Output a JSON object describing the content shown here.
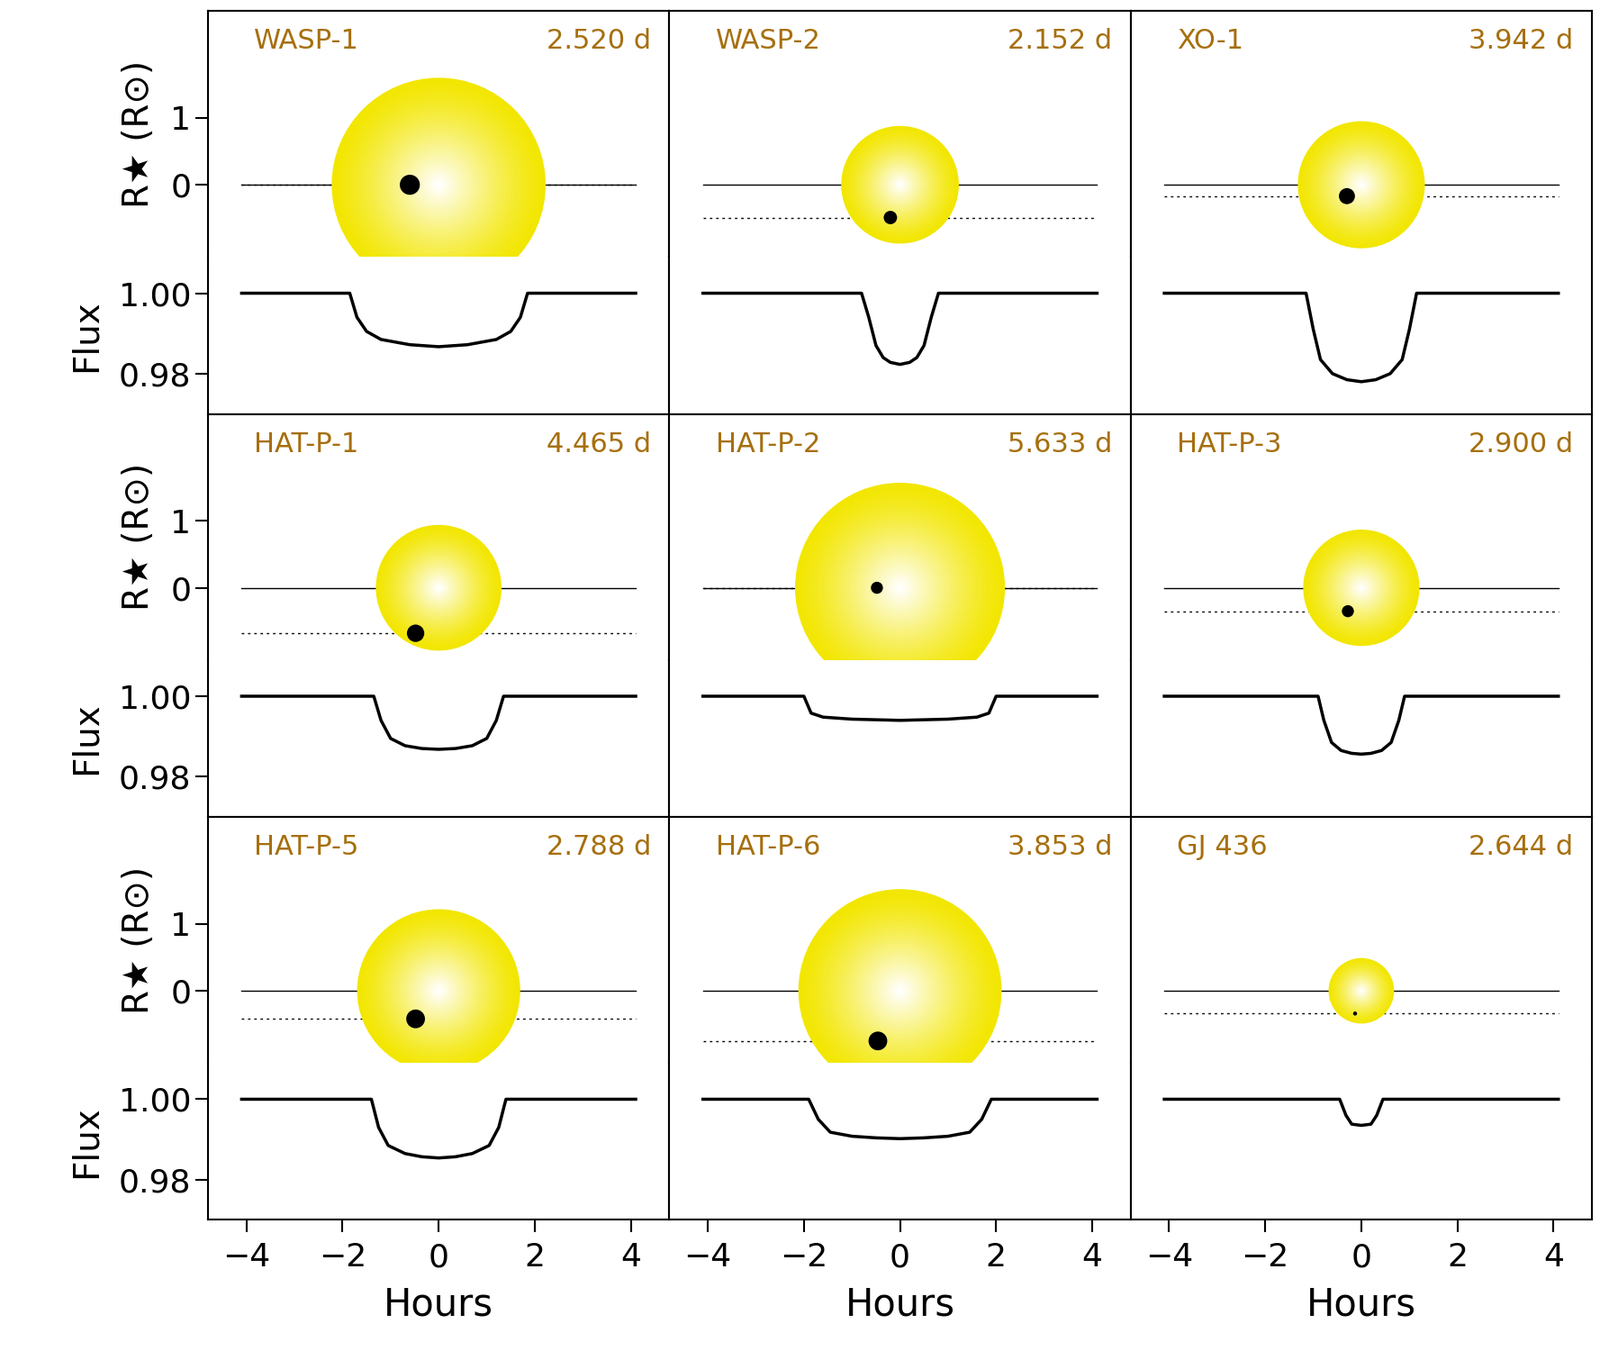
{
  "chart_data": [
    {
      "type": "line",
      "title": "WASP-1",
      "annotation": "2.520 d",
      "tick_labels": "y",
      "star_ylabel": "R★ (R⊙)",
      "ylabel": "Flux",
      "color": "#f2e600",
      "star_center": [
        0,
        0
      ],
      "star_radius": 1.6,
      "planet_x": -0.6,
      "planet_y": 0.0,
      "planet_radius": 0.15,
      "x": [
        -4.1,
        -1.85,
        -1.7,
        -1.5,
        -1.2,
        -0.6,
        0,
        0.6,
        1.2,
        1.5,
        1.7,
        1.85,
        4.1
      ],
      "values": [
        1.0,
        1.0,
        0.994,
        0.9905,
        0.9885,
        0.9872,
        0.9867,
        0.9872,
        0.9885,
        0.9905,
        0.994,
        1.0,
        1.0
      ],
      "xlim": [
        -4.8,
        4.8
      ],
      "xticks": [
        {
          "value": -4,
          "label": "−4"
        },
        {
          "value": -2,
          "label": "−2"
        },
        0,
        2,
        4
      ],
      "ylim": [
        0.97,
        1.009
      ],
      "yticks": [
        {
          "value": 0.98,
          "label": "0.98"
        },
        {
          "value": 1.0,
          "label": "1.00"
        }
      ],
      "star_ylim": [
        -1.08,
        2.6
      ],
      "star_yticks": [
        0,
        1
      ]
    },
    {
      "type": "line",
      "title": "WASP-2",
      "annotation": "2.152 d",
      "tick_labels": false,
      "color": "#f2e600",
      "star_center": [
        0,
        0
      ],
      "star_radius": 0.88,
      "planet_x": -0.2,
      "planet_y": -0.49,
      "planet_radius": 0.1,
      "x": [
        -4.1,
        -0.8,
        -0.65,
        -0.5,
        -0.35,
        -0.2,
        0,
        0.2,
        0.35,
        0.5,
        0.65,
        0.8,
        4.1
      ],
      "values": [
        1.0,
        1.0,
        0.994,
        0.987,
        0.984,
        0.9828,
        0.9823,
        0.9828,
        0.984,
        0.987,
        0.994,
        1.0,
        1.0
      ],
      "xlim": [
        -4.8,
        4.8
      ],
      "xticks": [
        {
          "value": -4,
          "label": "−4"
        },
        {
          "value": -2,
          "label": "−2"
        },
        0,
        2,
        4
      ],
      "ylim": [
        0.97,
        1.009
      ],
      "yticks": [
        {
          "value": 0.98,
          "label": "0.98"
        },
        {
          "value": 1.0,
          "label": "1.00"
        }
      ],
      "star_ylim": [
        -1.08,
        2.6
      ],
      "star_yticks": [
        0,
        1
      ]
    },
    {
      "type": "line",
      "title": "XO-1",
      "annotation": "3.942 d",
      "tick_labels": false,
      "color": "#f2e600",
      "star_center": [
        0,
        0
      ],
      "star_radius": 0.95,
      "planet_x": -0.3,
      "planet_y": -0.17,
      "planet_radius": 0.12,
      "x": [
        -4.1,
        -1.15,
        -1.0,
        -0.85,
        -0.6,
        -0.3,
        0,
        0.3,
        0.6,
        0.85,
        1.0,
        1.15,
        4.1
      ],
      "values": [
        1.0,
        1.0,
        0.991,
        0.9835,
        0.98,
        0.9785,
        0.978,
        0.9785,
        0.98,
        0.9835,
        0.991,
        1.0,
        1.0
      ],
      "xlim": [
        -4.8,
        4.8
      ],
      "xticks": [
        {
          "value": -4,
          "label": "−4"
        },
        {
          "value": -2,
          "label": "−2"
        },
        0,
        2,
        4
      ],
      "ylim": [
        0.97,
        1.009
      ],
      "yticks": [
        {
          "value": 0.98,
          "label": "0.98"
        },
        {
          "value": 1.0,
          "label": "1.00"
        }
      ],
      "star_ylim": [
        -1.08,
        2.6
      ],
      "star_yticks": [
        0,
        1
      ]
    },
    {
      "type": "line",
      "title": "HAT-P-1",
      "annotation": "4.465 d",
      "tick_labels": "y",
      "star_ylabel": "R★ (R⊙)",
      "ylabel": "Flux",
      "color": "#f2e600",
      "star_center": [
        0,
        0
      ],
      "star_radius": 0.94,
      "planet_x": -0.48,
      "planet_y": -0.68,
      "planet_radius": 0.13,
      "x": [
        -4.1,
        -1.35,
        -1.2,
        -1.0,
        -0.7,
        -0.35,
        0,
        0.35,
        0.7,
        1.0,
        1.2,
        1.35,
        4.1
      ],
      "values": [
        1.0,
        1.0,
        0.994,
        0.9895,
        0.9877,
        0.987,
        0.9868,
        0.987,
        0.9877,
        0.9895,
        0.994,
        1.0,
        1.0
      ],
      "xlim": [
        -4.8,
        4.8
      ],
      "xticks": [
        {
          "value": -4,
          "label": "−4"
        },
        {
          "value": -2,
          "label": "−2"
        },
        0,
        2,
        4
      ],
      "ylim": [
        0.97,
        1.009
      ],
      "yticks": [
        {
          "value": 0.98,
          "label": "0.98"
        },
        {
          "value": 1.0,
          "label": "1.00"
        }
      ],
      "star_ylim": [
        -1.08,
        2.6
      ],
      "star_yticks": [
        0,
        1
      ]
    },
    {
      "type": "line",
      "title": "HAT-P-2",
      "annotation": "5.633 d",
      "tick_labels": false,
      "color": "#f2e600",
      "star_center": [
        0,
        0
      ],
      "star_radius": 1.57,
      "planet_x": -0.48,
      "planet_y": 0.0,
      "planet_radius": 0.09,
      "x": [
        -4.1,
        -2.0,
        -1.85,
        -1.6,
        -1.0,
        0,
        1.0,
        1.6,
        1.85,
        2.0,
        4.1
      ],
      "values": [
        1.0,
        1.0,
        0.9958,
        0.9948,
        0.9943,
        0.994,
        0.9943,
        0.9948,
        0.9958,
        1.0,
        1.0
      ],
      "xlim": [
        -4.8,
        4.8
      ],
      "xticks": [
        {
          "value": -4,
          "label": "−4"
        },
        {
          "value": -2,
          "label": "−2"
        },
        0,
        2,
        4
      ],
      "ylim": [
        0.97,
        1.009
      ],
      "yticks": [
        {
          "value": 0.98,
          "label": "0.98"
        },
        {
          "value": 1.0,
          "label": "1.00"
        }
      ],
      "star_ylim": [
        -1.08,
        2.6
      ],
      "star_yticks": [
        0,
        1
      ]
    },
    {
      "type": "line",
      "title": "HAT-P-3",
      "annotation": "2.900 d",
      "tick_labels": false,
      "color": "#f2e600",
      "star_center": [
        0,
        0
      ],
      "star_radius": 0.87,
      "planet_x": -0.28,
      "planet_y": -0.35,
      "planet_radius": 0.09,
      "x": [
        -4.1,
        -0.9,
        -0.78,
        -0.62,
        -0.42,
        -0.2,
        0,
        0.2,
        0.42,
        0.62,
        0.78,
        0.9,
        4.1
      ],
      "values": [
        1.0,
        1.0,
        0.994,
        0.9885,
        0.9865,
        0.9858,
        0.9856,
        0.9858,
        0.9865,
        0.9885,
        0.994,
        1.0,
        1.0
      ],
      "xlim": [
        -4.8,
        4.8
      ],
      "xticks": [
        {
          "value": -4,
          "label": "−4"
        },
        {
          "value": -2,
          "label": "−2"
        },
        0,
        2,
        4
      ],
      "ylim": [
        0.97,
        1.009
      ],
      "yticks": [
        {
          "value": 0.98,
          "label": "0.98"
        },
        {
          "value": 1.0,
          "label": "1.00"
        }
      ],
      "star_ylim": [
        -1.08,
        2.6
      ],
      "star_yticks": [
        0,
        1
      ]
    },
    {
      "type": "line",
      "title": "HAT-P-5",
      "annotation": "2.788 d",
      "tick_labels": true,
      "star_ylabel": "R★ (R⊙)",
      "ylabel": "Flux",
      "xlabel": "Hours",
      "color": "#f2e600",
      "star_center": [
        0,
        0
      ],
      "star_radius": 1.22,
      "planet_x": -0.48,
      "planet_y": -0.42,
      "planet_radius": 0.14,
      "x": [
        -4.1,
        -1.4,
        -1.25,
        -1.05,
        -0.7,
        -0.35,
        0,
        0.35,
        0.7,
        1.05,
        1.25,
        1.4,
        4.1
      ],
      "values": [
        1.0,
        1.0,
        0.993,
        0.9885,
        0.9865,
        0.9857,
        0.9854,
        0.9857,
        0.9865,
        0.9885,
        0.993,
        1.0,
        1.0
      ],
      "xlim": [
        -4.8,
        4.8
      ],
      "xticks": [
        {
          "value": -4,
          "label": "−4"
        },
        {
          "value": -2,
          "label": "−2"
        },
        0,
        2,
        4
      ],
      "ylim": [
        0.97,
        1.009
      ],
      "yticks": [
        {
          "value": 0.98,
          "label": "0.98"
        },
        {
          "value": 1.0,
          "label": "1.00"
        }
      ],
      "star_ylim": [
        -1.08,
        2.6
      ],
      "star_yticks": [
        0,
        1
      ]
    },
    {
      "type": "line",
      "title": "HAT-P-6",
      "annotation": "3.853 d",
      "tick_labels": "x",
      "xlabel": "Hours",
      "color": "#f2e600",
      "star_center": [
        0,
        0
      ],
      "star_radius": 1.52,
      "planet_x": -0.46,
      "planet_y": -0.75,
      "planet_radius": 0.14,
      "x": [
        -4.1,
        -1.9,
        -1.7,
        -1.45,
        -1.0,
        -0.5,
        0,
        0.5,
        1.0,
        1.45,
        1.7,
        1.9,
        4.1
      ],
      "values": [
        1.0,
        1.0,
        0.995,
        0.9918,
        0.9908,
        0.9904,
        0.9902,
        0.9904,
        0.9908,
        0.9918,
        0.995,
        1.0,
        1.0
      ],
      "xlim": [
        -4.8,
        4.8
      ],
      "xticks": [
        {
          "value": -4,
          "label": "−4"
        },
        {
          "value": -2,
          "label": "−2"
        },
        0,
        2,
        4
      ],
      "ylim": [
        0.97,
        1.009
      ],
      "yticks": [
        {
          "value": 0.98,
          "label": "0.98"
        },
        {
          "value": 1.0,
          "label": "1.00"
        }
      ],
      "star_ylim": [
        -1.08,
        2.6
      ],
      "star_yticks": [
        0,
        1
      ]
    },
    {
      "type": "line",
      "title": "GJ 436",
      "annotation": "2.644 d",
      "tick_labels": "x",
      "xlabel": "Hours",
      "color": "#f2e600",
      "star_center": [
        0,
        0
      ],
      "star_radius": 0.49,
      "planet_x": -0.13,
      "planet_y": -0.34,
      "planet_radius": 0.03,
      "x": [
        -4.1,
        -0.45,
        -0.32,
        -0.2,
        0,
        0.2,
        0.32,
        0.45,
        4.1
      ],
      "values": [
        1.0,
        1.0,
        0.996,
        0.9938,
        0.9935,
        0.9938,
        0.996,
        1.0,
        1.0
      ],
      "xlim": [
        -4.8,
        4.8
      ],
      "xticks": [
        {
          "value": -4,
          "label": "−4"
        },
        {
          "value": -2,
          "label": "−2"
        },
        0,
        2,
        4
      ],
      "ylim": [
        0.97,
        1.009
      ],
      "yticks": [
        {
          "value": 0.98,
          "label": "0.98"
        },
        {
          "value": 1.0,
          "label": "1.00"
        }
      ],
      "star_ylim": [
        -1.08,
        2.6
      ],
      "star_yticks": [
        0,
        1
      ]
    }
  ]
}
